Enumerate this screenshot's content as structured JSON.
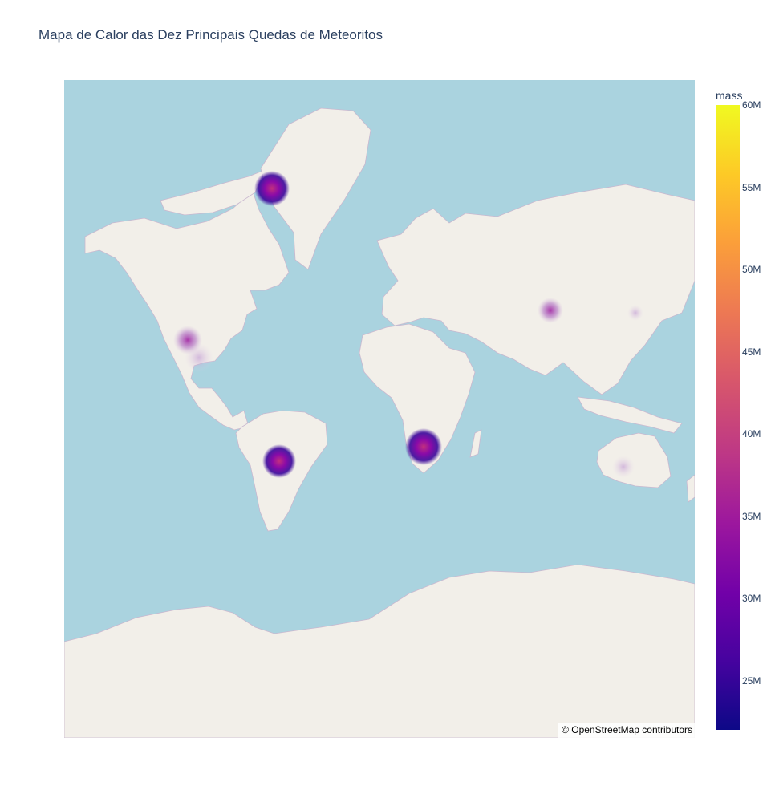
{
  "title": "Mapa de Calor das Dez Principais Quedas de Meteoritos",
  "map": {
    "style": "open-street-map",
    "attribution": "© OpenStreetMap contributors",
    "colors": {
      "ocean": "#aad3df",
      "land": "#f2efe9",
      "border": "#c9b8cf"
    }
  },
  "colorbar": {
    "title": "mass",
    "range": [
      22000000,
      60000000
    ],
    "ticks": [
      {
        "label": "60M",
        "value": 60000000
      },
      {
        "label": "55M",
        "value": 55000000
      },
      {
        "label": "50M",
        "value": 50000000
      },
      {
        "label": "45M",
        "value": 45000000
      },
      {
        "label": "40M",
        "value": 40000000
      },
      {
        "label": "35M",
        "value": 35000000
      },
      {
        "label": "30M",
        "value": 30000000
      },
      {
        "label": "25M",
        "value": 25000000
      }
    ],
    "colorscale": "plasma"
  },
  "chart_data": {
    "type": "density_map",
    "z_field": "mass",
    "points": [
      {
        "lat": 76.1,
        "lon": -64.9,
        "mass": 58200000
      },
      {
        "lat": -19.6,
        "lon": 17.9,
        "mass": 60000000
      },
      {
        "lat": -27.5,
        "lon": -60.6,
        "mass": 50000000
      },
      {
        "lat": 27.0,
        "lon": -105.1,
        "mass": 39000000
      },
      {
        "lat": 46.2,
        "lon": 90.7,
        "mass": 30000000
      },
      {
        "lat": 30.0,
        "lon": -103.0,
        "mass": 24000000
      },
      {
        "lat": -30.8,
        "lon": 127.5,
        "mass": 24000000
      },
      {
        "lat": 24.5,
        "lon": -103.5,
        "mass": 23000000
      }
    ]
  }
}
